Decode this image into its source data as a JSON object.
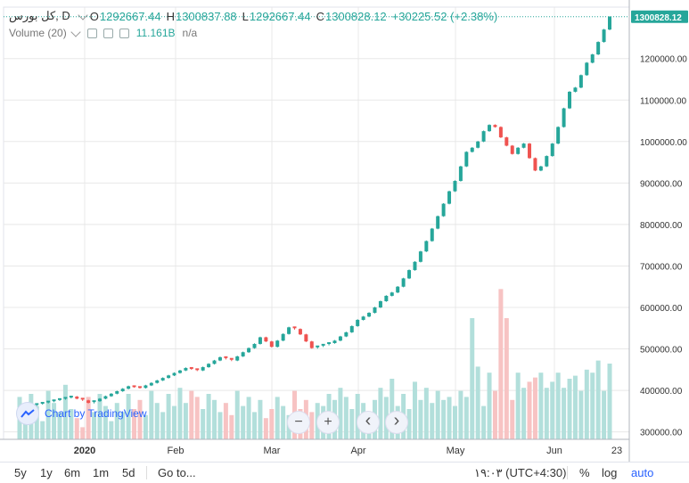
{
  "symbol": "کل بورس, D",
  "ohlc": {
    "o_label": "O",
    "o_value": "1292667.44",
    "h_label": "H",
    "h_value": "1300837.88",
    "l_label": "L",
    "l_value": "1292667.44",
    "c_label": "C",
    "c_value": "1300828.12",
    "change": "+30225.52 (+2.38%)"
  },
  "volume": {
    "label": "Volume (20)",
    "value": "11.161B",
    "ma": "n/a"
  },
  "last_price_tag": "1300828.12",
  "watermark": "Chart by TradingView",
  "timeframes": [
    "5y",
    "1y",
    "6m",
    "1m",
    "5d"
  ],
  "goto": "Go to...",
  "timezone": "۱۹:۰۳ (UTC+4:30)",
  "options": {
    "percent": "%",
    "log": "log",
    "auto": "auto"
  },
  "nav": {
    "zoom_out": "−",
    "zoom_in": "+",
    "back": "‹",
    "forward": "›"
  },
  "colors": {
    "up": "#26a69a",
    "down": "#ef5350",
    "vol_up": "#b2dfdb",
    "vol_down": "#f7c3c3",
    "grid": "#e8e8e8",
    "accent": "#2962ff"
  },
  "chart_data": {
    "type": "bar",
    "style": "candlestick",
    "y_ticks": [
      "1200000.00",
      "1100000.00",
      "1000000.00",
      "900000.00",
      "800000.00",
      "700000.00",
      "600000.00",
      "500000.00",
      "400000.00",
      "300000.00"
    ],
    "x_ticks": [
      "2020",
      "Feb",
      "Mar",
      "Apr",
      "May",
      "Jun",
      "23"
    ],
    "ylim": [
      282000,
      1324000
    ],
    "close_series": [
      358000,
      361000,
      364000,
      367000,
      370000,
      373000,
      376000,
      379000,
      382000,
      385000,
      380000,
      376000,
      370000,
      374000,
      380000,
      386000,
      392000,
      398000,
      404000,
      410000,
      408000,
      406000,
      412000,
      418000,
      424000,
      430000,
      436000,
      442000,
      448000,
      454000,
      451000,
      448000,
      456000,
      464000,
      472000,
      480000,
      476000,
      472000,
      482000,
      492000,
      502000,
      512000,
      528000,
      518000,
      505000,
      520000,
      536000,
      552000,
      548000,
      535000,
      518000,
      502000,
      506000,
      510000,
      514000,
      520000,
      530000,
      540000,
      555000,
      570000,
      578000,
      587000,
      600000,
      615000,
      628000,
      636000,
      650000,
      670000,
      690000,
      710000,
      735000,
      760000,
      790000,
      820000,
      850000,
      880000,
      905000,
      940000,
      975000,
      985000,
      1000000,
      1025000,
      1040000,
      1035000,
      1010000,
      990000,
      970000,
      985000,
      995000,
      960000,
      930000,
      940000,
      965000,
      995000,
      1035000,
      1080000,
      1120000,
      1130000,
      1160000,
      1190000,
      1210000,
      1240000,
      1270000,
      1300828
    ],
    "volume_series": [
      370000,
      340000,
      375000,
      355000,
      330000,
      380000,
      360000,
      345000,
      390000,
      350000,
      335000,
      320000,
      370000,
      345000,
      375000,
      355000,
      330000,
      360000,
      345000,
      375000,
      350000,
      365000,
      340000,
      380000,
      360000,
      345000,
      375000,
      355000,
      385000,
      360000,
      380000,
      370000,
      350000,
      375000,
      365000,
      345000,
      360000,
      340000,
      380000,
      355000,
      370000,
      345000,
      365000,
      335000,
      350000,
      370000,
      355000,
      340000,
      380000,
      350000,
      365000,
      345000,
      360000,
      355000,
      375000,
      365000,
      385000,
      370000,
      350000,
      375000,
      360000,
      345000,
      365000,
      385000,
      370000,
      400000,
      355000,
      375000,
      350000,
      395000,
      365000,
      385000,
      360000,
      380000,
      365000,
      370000,
      355000,
      380000,
      370000,
      500000,
      420000,
      355000,
      410000,
      380000,
      548000,
      500000,
      365000,
      410000,
      385000,
      395000,
      402000,
      410000,
      385000,
      395000,
      410000,
      385000,
      400000,
      405000,
      380000,
      415000,
      410000,
      430000,
      380000,
      425000
    ]
  }
}
